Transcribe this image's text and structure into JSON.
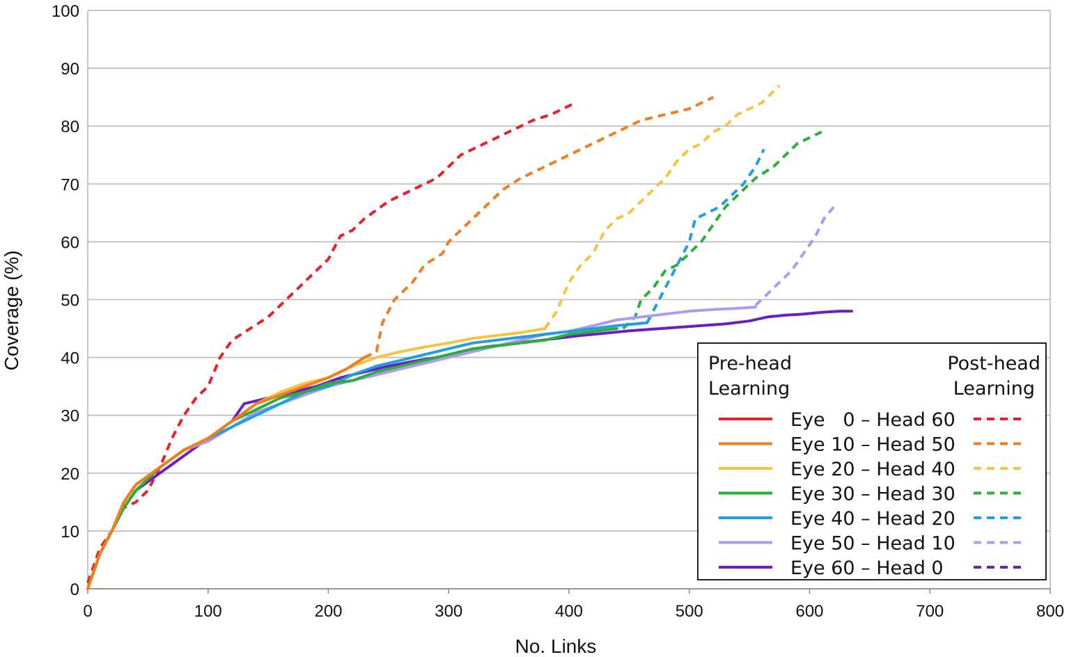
{
  "chart_data": {
    "type": "line",
    "title": "",
    "xlabel": "No. Links",
    "ylabel": "Coverage (%)",
    "xlim": [
      0,
      800
    ],
    "ylim": [
      0,
      100
    ],
    "xticks": [
      0,
      100,
      200,
      300,
      400,
      500,
      600,
      700,
      800
    ],
    "yticks": [
      0,
      10,
      20,
      30,
      40,
      50,
      60,
      70,
      80,
      90,
      100
    ],
    "grid": "horizontal",
    "legend": {
      "placement": "bottom-right",
      "pre_header_line1": "Pre-head",
      "pre_header_line2": "Learning",
      "post_header_line1": "Post-head",
      "post_header_line2": "Learning"
    },
    "series": [
      {
        "name": "Eye   0 – Head 60",
        "color": "#e8202a",
        "pre": [
          [
            0,
            0
          ],
          [
            0,
            0
          ]
        ],
        "post": [
          [
            0,
            1
          ],
          [
            5,
            4
          ],
          [
            10,
            7
          ],
          [
            20,
            10
          ],
          [
            25,
            12
          ],
          [
            30,
            14
          ],
          [
            40,
            15
          ],
          [
            50,
            17
          ],
          [
            60,
            21
          ],
          [
            70,
            26
          ],
          [
            80,
            30
          ],
          [
            90,
            33
          ],
          [
            100,
            35
          ],
          [
            110,
            40
          ],
          [
            120,
            43
          ],
          [
            135,
            45
          ],
          [
            150,
            47
          ],
          [
            170,
            51
          ],
          [
            180,
            53
          ],
          [
            190,
            55
          ],
          [
            200,
            57
          ],
          [
            210,
            61
          ],
          [
            220,
            62
          ],
          [
            230,
            64
          ],
          [
            250,
            67
          ],
          [
            270,
            69
          ],
          [
            290,
            71
          ],
          [
            300,
            73
          ],
          [
            310,
            75
          ],
          [
            330,
            77
          ],
          [
            350,
            79
          ],
          [
            370,
            81
          ],
          [
            385,
            82
          ],
          [
            395,
            83
          ],
          [
            405,
            84
          ]
        ]
      },
      {
        "name": "Eye 10 – Head 50",
        "color": "#f07d1e",
        "pre": [
          [
            0,
            0
          ],
          [
            5,
            3
          ],
          [
            10,
            6
          ],
          [
            20,
            10
          ],
          [
            30,
            15
          ],
          [
            40,
            18
          ],
          [
            60,
            21
          ],
          [
            80,
            24
          ],
          [
            100,
            26
          ],
          [
            120,
            29
          ],
          [
            140,
            32
          ],
          [
            160,
            33.5
          ],
          [
            180,
            35
          ],
          [
            200,
            36.5
          ],
          [
            215,
            38
          ],
          [
            230,
            40
          ]
        ],
        "post": [
          [
            230,
            40
          ],
          [
            240,
            41
          ],
          [
            245,
            46
          ],
          [
            255,
            50
          ],
          [
            270,
            53
          ],
          [
            280,
            56
          ],
          [
            295,
            58
          ],
          [
            300,
            60
          ],
          [
            310,
            62
          ],
          [
            320,
            64
          ],
          [
            330,
            66
          ],
          [
            345,
            69
          ],
          [
            360,
            71
          ],
          [
            380,
            73
          ],
          [
            400,
            75
          ],
          [
            420,
            77
          ],
          [
            440,
            79
          ],
          [
            460,
            81
          ],
          [
            480,
            82
          ],
          [
            500,
            83
          ],
          [
            520,
            85
          ]
        ]
      },
      {
        "name": "Eye 20 – Head 40",
        "color": "#f5c242",
        "pre": [
          [
            0,
            0
          ],
          [
            5,
            3
          ],
          [
            10,
            6
          ],
          [
            20,
            10
          ],
          [
            30,
            15
          ],
          [
            40,
            18
          ],
          [
            60,
            21
          ],
          [
            80,
            24
          ],
          [
            100,
            26
          ],
          [
            120,
            29
          ],
          [
            140,
            32
          ],
          [
            160,
            34
          ],
          [
            180,
            35.5
          ],
          [
            200,
            36.5
          ],
          [
            220,
            38.5
          ],
          [
            240,
            40
          ],
          [
            260,
            41
          ],
          [
            280,
            41.8
          ],
          [
            300,
            42.5
          ],
          [
            320,
            43.3
          ],
          [
            340,
            43.8
          ],
          [
            360,
            44.3
          ],
          [
            380,
            45
          ]
        ],
        "post": [
          [
            380,
            45
          ],
          [
            390,
            48
          ],
          [
            400,
            53
          ],
          [
            410,
            56
          ],
          [
            420,
            58
          ],
          [
            430,
            62
          ],
          [
            440,
            64
          ],
          [
            450,
            65
          ],
          [
            460,
            67
          ],
          [
            470,
            69
          ],
          [
            480,
            71
          ],
          [
            490,
            74
          ],
          [
            500,
            76
          ],
          [
            510,
            77
          ],
          [
            520,
            79
          ],
          [
            530,
            80
          ],
          [
            540,
            82
          ],
          [
            560,
            84
          ],
          [
            575,
            87
          ]
        ]
      },
      {
        "name": "Eye 30 – Head 30",
        "color": "#2eae38",
        "pre": [
          [
            0,
            0
          ],
          [
            5,
            3
          ],
          [
            10,
            6
          ],
          [
            20,
            10
          ],
          [
            30,
            14
          ],
          [
            40,
            17
          ],
          [
            60,
            21
          ],
          [
            80,
            24
          ],
          [
            100,
            26
          ],
          [
            120,
            29
          ],
          [
            140,
            31
          ],
          [
            160,
            33
          ],
          [
            180,
            34
          ],
          [
            200,
            35.5
          ],
          [
            220,
            36
          ],
          [
            240,
            37.5
          ],
          [
            260,
            38.5
          ],
          [
            280,
            39.5
          ],
          [
            300,
            40.5
          ],
          [
            320,
            41.5
          ],
          [
            340,
            42
          ],
          [
            360,
            42.5
          ],
          [
            380,
            43
          ],
          [
            400,
            44
          ],
          [
            420,
            44.5
          ],
          [
            440,
            45
          ]
        ],
        "post": [
          [
            445,
            45
          ],
          [
            455,
            47
          ],
          [
            460,
            50
          ],
          [
            470,
            52
          ],
          [
            480,
            55
          ],
          [
            490,
            56
          ],
          [
            500,
            58
          ],
          [
            510,
            60
          ],
          [
            520,
            63
          ],
          [
            530,
            66
          ],
          [
            545,
            69
          ],
          [
            555,
            71
          ],
          [
            570,
            73
          ],
          [
            580,
            75
          ],
          [
            590,
            77
          ],
          [
            600,
            78
          ],
          [
            610,
            79
          ]
        ]
      },
      {
        "name": "Eye 40 – Head 20",
        "color": "#1f9ee0",
        "pre": [
          [
            0,
            0
          ],
          [
            5,
            3
          ],
          [
            10,
            6
          ],
          [
            20,
            10
          ],
          [
            30,
            14
          ],
          [
            40,
            17
          ],
          [
            60,
            21
          ],
          [
            80,
            24
          ],
          [
            100,
            26
          ],
          [
            120,
            28
          ],
          [
            140,
            30
          ],
          [
            160,
            32
          ],
          [
            180,
            34
          ],
          [
            200,
            35
          ],
          [
            220,
            37
          ],
          [
            240,
            38.5
          ],
          [
            260,
            39.5
          ],
          [
            280,
            40.5
          ],
          [
            300,
            41.5
          ],
          [
            320,
            42.5
          ],
          [
            340,
            43
          ],
          [
            360,
            43.5
          ],
          [
            380,
            44
          ],
          [
            400,
            44.5
          ],
          [
            420,
            45
          ],
          [
            440,
            45.5
          ],
          [
            465,
            46
          ]
        ],
        "post": [
          [
            465,
            46
          ],
          [
            470,
            48
          ],
          [
            480,
            52
          ],
          [
            490,
            56
          ],
          [
            500,
            60
          ],
          [
            505,
            64
          ],
          [
            515,
            65
          ],
          [
            525,
            66
          ],
          [
            535,
            68
          ],
          [
            545,
            70
          ],
          [
            555,
            73
          ],
          [
            562,
            76
          ]
        ]
      },
      {
        "name": "Eye 50 – Head 10",
        "color": "#a79cf2",
        "pre": [
          [
            0,
            0
          ],
          [
            5,
            3
          ],
          [
            10,
            6
          ],
          [
            20,
            10
          ],
          [
            30,
            14
          ],
          [
            40,
            17
          ],
          [
            60,
            21
          ],
          [
            80,
            24
          ],
          [
            100,
            25.5
          ],
          [
            120,
            28
          ],
          [
            140,
            30.5
          ],
          [
            160,
            32
          ],
          [
            180,
            33.5
          ],
          [
            200,
            35
          ],
          [
            220,
            36
          ],
          [
            240,
            37
          ],
          [
            260,
            38
          ],
          [
            280,
            39
          ],
          [
            300,
            40
          ],
          [
            320,
            41
          ],
          [
            340,
            42
          ],
          [
            360,
            43
          ],
          [
            380,
            44
          ],
          [
            400,
            44.5
          ],
          [
            420,
            45.5
          ],
          [
            440,
            46.5
          ],
          [
            460,
            47
          ],
          [
            480,
            47.5
          ],
          [
            500,
            48
          ],
          [
            520,
            48.3
          ],
          [
            540,
            48.5
          ],
          [
            555,
            48.7
          ]
        ],
        "post": [
          [
            555,
            49
          ],
          [
            570,
            52
          ],
          [
            585,
            55
          ],
          [
            595,
            58
          ],
          [
            605,
            61
          ],
          [
            612,
            64
          ],
          [
            620,
            66
          ]
        ]
      },
      {
        "name": "Eye 60 – Head 0",
        "color": "#6a1fc2",
        "pre": [
          [
            0,
            0
          ],
          [
            5,
            3
          ],
          [
            10,
            6
          ],
          [
            20,
            10
          ],
          [
            30,
            14
          ],
          [
            40,
            17
          ],
          [
            60,
            20
          ],
          [
            80,
            23
          ],
          [
            100,
            26
          ],
          [
            120,
            29
          ],
          [
            130,
            32
          ],
          [
            150,
            33
          ],
          [
            170,
            34
          ],
          [
            190,
            35
          ],
          [
            210,
            36.5
          ],
          [
            230,
            37.5
          ],
          [
            250,
            38.5
          ],
          [
            270,
            39.3
          ],
          [
            290,
            40
          ],
          [
            310,
            41
          ],
          [
            330,
            41.8
          ],
          [
            350,
            42.3
          ],
          [
            370,
            42.8
          ],
          [
            390,
            43.3
          ],
          [
            410,
            43.8
          ],
          [
            430,
            44.2
          ],
          [
            450,
            44.6
          ],
          [
            470,
            44.9
          ],
          [
            490,
            45.2
          ],
          [
            510,
            45.5
          ],
          [
            530,
            45.8
          ],
          [
            550,
            46.3
          ],
          [
            565,
            47
          ],
          [
            580,
            47.3
          ],
          [
            595,
            47.5
          ],
          [
            610,
            47.8
          ],
          [
            625,
            48
          ],
          [
            635,
            48
          ]
        ],
        "post": []
      }
    ]
  }
}
